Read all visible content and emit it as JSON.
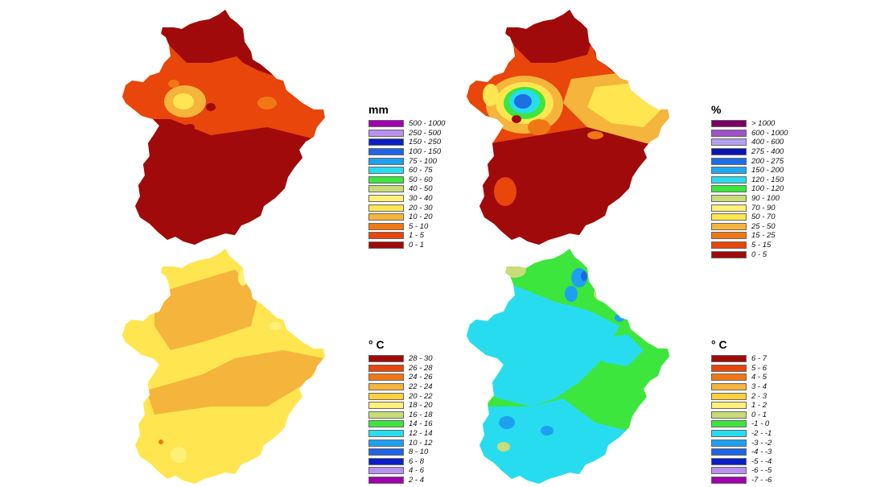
{
  "maps": [
    {
      "id": "precipitation",
      "legend_title": "mm",
      "classes": [
        {
          "label": "500 - 1000",
          "color": "#a000b0"
        },
        {
          "label": "250 - 500",
          "color": "#b890f0"
        },
        {
          "label": "150 - 250",
          "color": "#0a1ec8"
        },
        {
          "label": "100 - 150",
          "color": "#1e64e6"
        },
        {
          "label": "75 - 100",
          "color": "#1ea0f0"
        },
        {
          "label": "60 - 75",
          "color": "#28dcf0"
        },
        {
          "label": "50 - 60",
          "color": "#3ce63c"
        },
        {
          "label": "40 - 50",
          "color": "#c8dc78"
        },
        {
          "label": "30 - 40",
          "color": "#fff078"
        },
        {
          "label": "20 - 30",
          "color": "#ffe650"
        },
        {
          "label": "10 - 20",
          "color": "#f5b43c"
        },
        {
          "label": "5 - 10",
          "color": "#f07814"
        },
        {
          "label": "1 - 5",
          "color": "#e8460a"
        },
        {
          "label": "0 - 1",
          "color": "#a00a0a"
        }
      ]
    },
    {
      "id": "precipitation-percent",
      "legend_title": "%",
      "classes": [
        {
          "label": "> 1000",
          "color": "#780064"
        },
        {
          "label": "600 - 1000",
          "color": "#a050c8"
        },
        {
          "label": "400 - 600",
          "color": "#b4a0f0"
        },
        {
          "label": "275 - 400",
          "color": "#0a14b4"
        },
        {
          "label": "200 - 275",
          "color": "#1e6ee6"
        },
        {
          "label": "150 - 200",
          "color": "#1eaaf0"
        },
        {
          "label": "120 - 150",
          "color": "#28dcf0"
        },
        {
          "label": "100 - 120",
          "color": "#3ce63c"
        },
        {
          "label": "90 - 100",
          "color": "#c8dc78"
        },
        {
          "label": "70 - 90",
          "color": "#fff078"
        },
        {
          "label": "50 - 70",
          "color": "#ffe650"
        },
        {
          "label": "25 - 50",
          "color": "#f5b43c"
        },
        {
          "label": "15 - 25",
          "color": "#f07814"
        },
        {
          "label": "5 - 15",
          "color": "#e8460a"
        },
        {
          "label": "0 - 5",
          "color": "#a00a0a"
        }
      ]
    },
    {
      "id": "mean-temperature",
      "legend_title": "° C",
      "classes": [
        {
          "label": "28 - 30",
          "color": "#a00a0a"
        },
        {
          "label": "26 - 28",
          "color": "#e8460a"
        },
        {
          "label": "24 - 26",
          "color": "#f07814"
        },
        {
          "label": "22 - 24",
          "color": "#f5b43c"
        },
        {
          "label": "20 - 22",
          "color": "#ffd03c"
        },
        {
          "label": "18 - 20",
          "color": "#fff078"
        },
        {
          "label": "16 - 18",
          "color": "#c8dc78"
        },
        {
          "label": "14 - 16",
          "color": "#3ce63c"
        },
        {
          "label": "12 - 14",
          "color": "#28dcf0"
        },
        {
          "label": "10 - 12",
          "color": "#1ea0f0"
        },
        {
          "label": "8 - 10",
          "color": "#1e64e6"
        },
        {
          "label": "6 - 8",
          "color": "#0a1ec8"
        },
        {
          "label": "4 - 6",
          "color": "#b890f0"
        },
        {
          "label": "2 - 4",
          "color": "#a000b0"
        }
      ]
    },
    {
      "id": "temperature-anomaly",
      "legend_title": "° C",
      "classes": [
        {
          "label": "6 - 7",
          "color": "#a00a0a"
        },
        {
          "label": "5 - 6",
          "color": "#e8460a"
        },
        {
          "label": "4 - 5",
          "color": "#f07814"
        },
        {
          "label": "3 - 4",
          "color": "#f5b43c"
        },
        {
          "label": "2 - 3",
          "color": "#ffd03c"
        },
        {
          "label": "1 - 2",
          "color": "#fff078"
        },
        {
          "label": "0 - 1",
          "color": "#c8dc78"
        },
        {
          "label": "-1 - 0",
          "color": "#3ce63c"
        },
        {
          "label": "-2 - -1",
          "color": "#28dcf0"
        },
        {
          "label": "-3 - -2",
          "color": "#1ea0f0"
        },
        {
          "label": "-4 - -3",
          "color": "#1e64e6"
        },
        {
          "label": "-5 - -4",
          "color": "#0a1ec8"
        },
        {
          "label": "-6 - -5",
          "color": "#b890f0"
        },
        {
          "label": "-7 - -6",
          "color": "#a000b0"
        }
      ]
    }
  ]
}
